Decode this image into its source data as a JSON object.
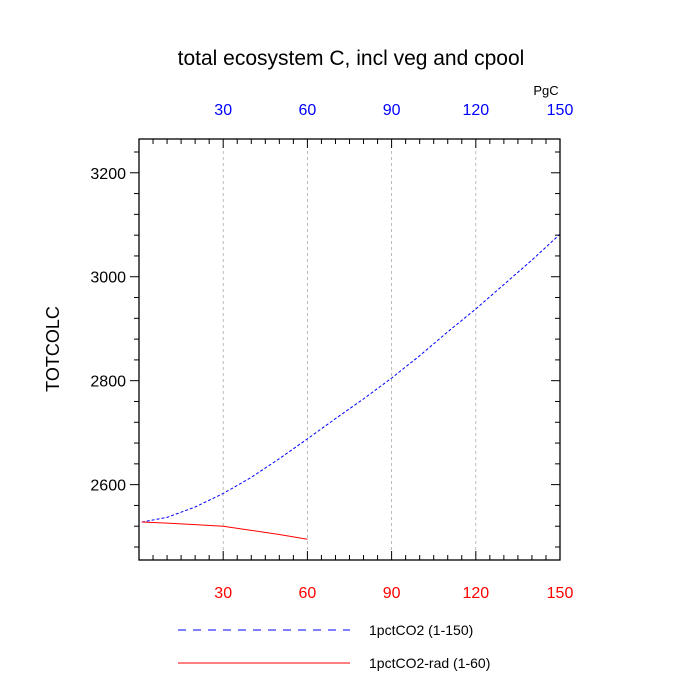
{
  "chart_data": {
    "type": "line",
    "title": "total ecosystem C, incl veg and cpool",
    "ylabel": "TOTCOLC",
    "units": "PgC",
    "xlim": [
      0,
      150
    ],
    "ylim": [
      2455,
      3265
    ],
    "x_ticks": [
      30,
      60,
      90,
      120,
      150
    ],
    "x_tick_labels": [
      "30",
      "60",
      "90",
      "120",
      "150"
    ],
    "y_ticks": [
      2600,
      2800,
      3000,
      3200
    ],
    "y_tick_labels": [
      "2600",
      "2800",
      "3000",
      "3200"
    ],
    "grid_x": true,
    "legend_position": "bottom",
    "colors": {
      "top_axis": "#0000ff",
      "bottom_axis": "#ff0000",
      "grid": "#aaaaaa"
    },
    "series": [
      {
        "name": "1pctCO2 (1-150)",
        "color": "#0000ff",
        "dash": "dashed",
        "x": [
          1,
          10,
          20,
          30,
          40,
          50,
          60,
          70,
          80,
          90,
          100,
          110,
          120,
          130,
          140,
          150
        ],
        "y": [
          2528,
          2537,
          2557,
          2583,
          2614,
          2650,
          2688,
          2727,
          2765,
          2805,
          2848,
          2894,
          2938,
          2985,
          3032,
          3082
        ]
      },
      {
        "name": "1pctCO2-rad (1-60)",
        "color": "#ff0000",
        "dash": "solid",
        "x": [
          1,
          10,
          20,
          30,
          40,
          50,
          60
        ],
        "y": [
          2528,
          2526,
          2523,
          2520,
          2512,
          2504,
          2495
        ]
      }
    ]
  }
}
